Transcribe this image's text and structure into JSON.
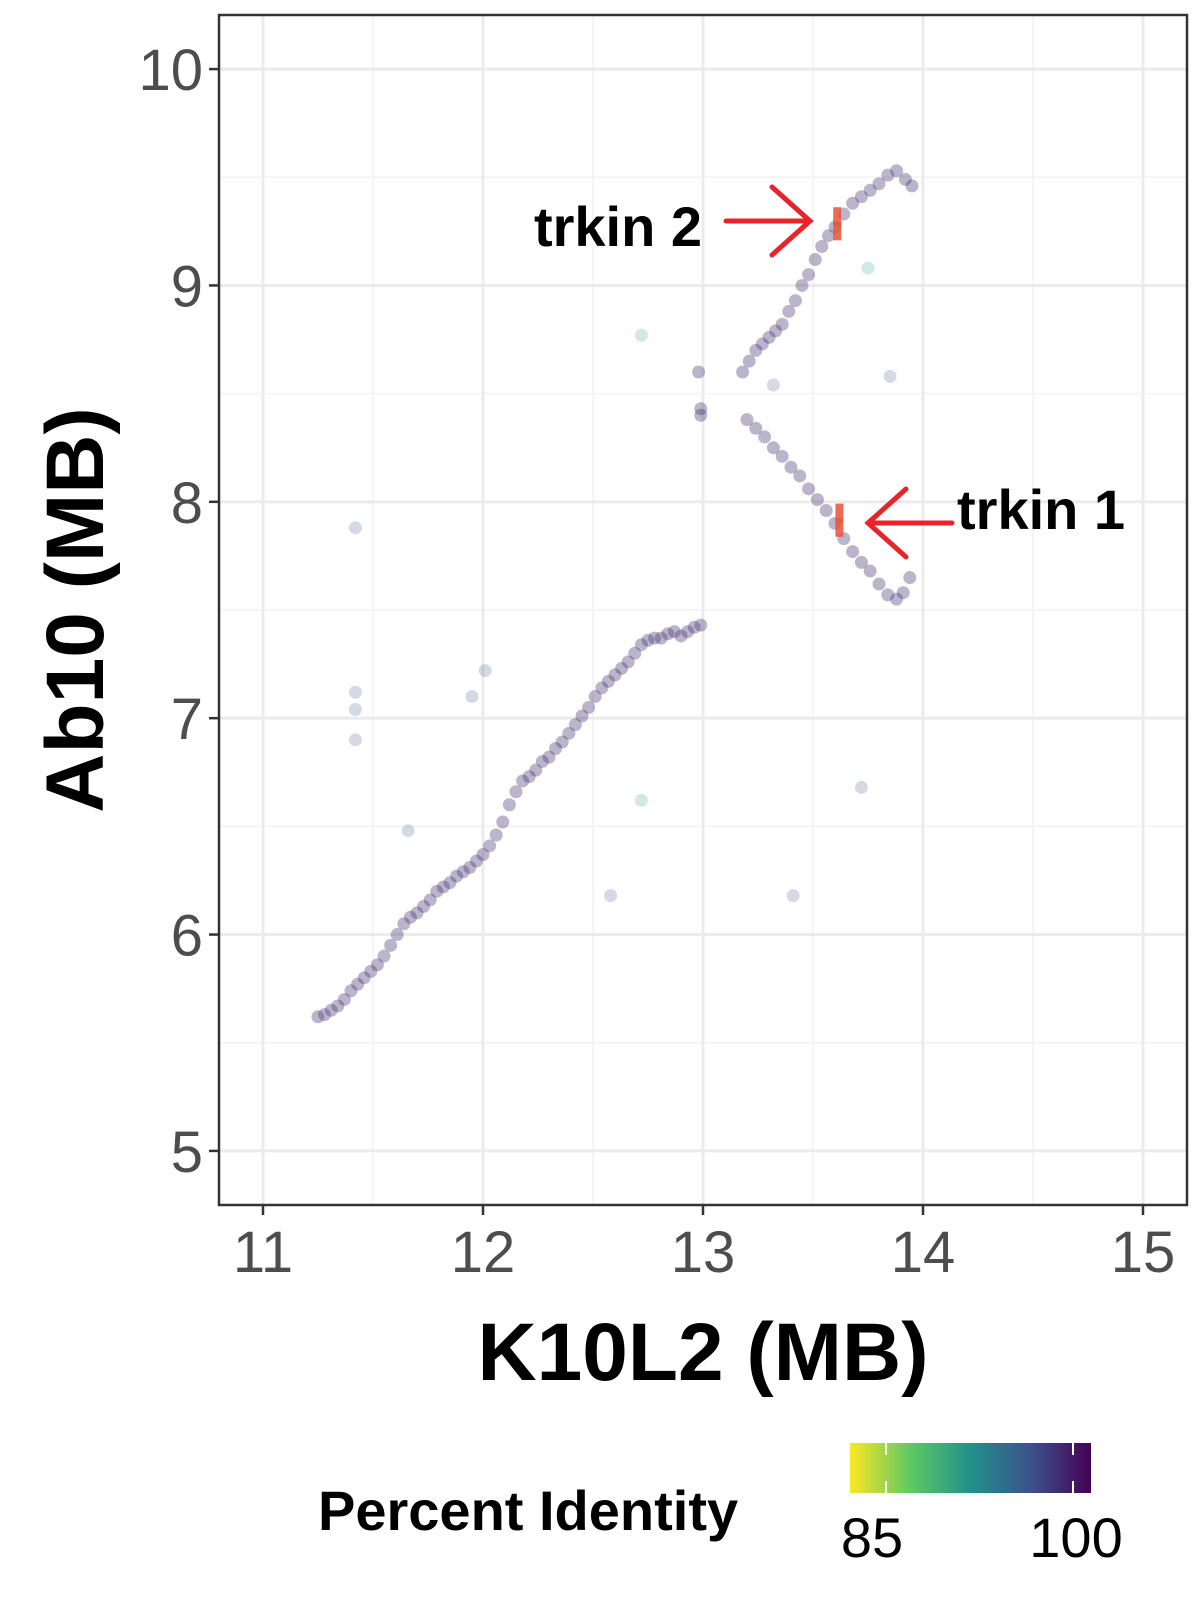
{
  "chart_data": {
    "type": "scatter",
    "title": "",
    "xlabel": "K10L2 (MB)",
    "ylabel": "Ab10 (MB)",
    "xlim": [
      10.8,
      15.2
    ],
    "ylim": [
      4.75,
      10.25
    ],
    "xticks": [
      11,
      12,
      13,
      14,
      15
    ],
    "yticks": [
      5,
      6,
      7,
      8,
      9,
      10
    ],
    "grid": true,
    "legend": {
      "title": "Percent Identity",
      "placement": "bottom",
      "min": 85,
      "max": 100,
      "tick_labels": [
        "85",
        "100"
      ]
    },
    "annotations": [
      {
        "label": "trkin 2",
        "x": 13.6,
        "y": 9.28,
        "side": "left"
      },
      {
        "label": "trkin 1",
        "x": 13.62,
        "y": 7.9,
        "side": "right"
      }
    ],
    "colors": {
      "line_points": "#3b2a6b",
      "high_identity": "#440154",
      "mid_identity": "#2a9d8f",
      "highlight": "#e8533a",
      "arrow": "#e8232a"
    },
    "series": [
      {
        "points": [
          [
            11.25,
            5.62
          ],
          [
            11.28,
            5.63
          ],
          [
            11.31,
            5.65
          ],
          [
            11.34,
            5.67
          ],
          [
            11.37,
            5.7
          ],
          [
            11.4,
            5.74
          ],
          [
            11.43,
            5.77
          ],
          [
            11.46,
            5.8
          ],
          [
            11.49,
            5.83
          ],
          [
            11.52,
            5.86
          ],
          [
            11.55,
            5.9
          ],
          [
            11.58,
            5.95
          ],
          [
            11.61,
            6.0
          ],
          [
            11.64,
            6.05
          ],
          [
            11.67,
            6.08
          ],
          [
            11.7,
            6.1
          ],
          [
            11.73,
            6.13
          ],
          [
            11.76,
            6.16
          ],
          [
            11.79,
            6.2
          ],
          [
            11.82,
            6.22
          ],
          [
            11.85,
            6.24
          ],
          [
            11.88,
            6.27
          ],
          [
            11.91,
            6.29
          ],
          [
            11.94,
            6.31
          ],
          [
            11.97,
            6.34
          ],
          [
            12.0,
            6.37
          ],
          [
            12.03,
            6.41
          ],
          [
            12.06,
            6.46
          ],
          [
            12.09,
            6.52
          ],
          [
            12.12,
            6.6
          ],
          [
            12.15,
            6.66
          ],
          [
            12.18,
            6.71
          ],
          [
            12.21,
            6.73
          ],
          [
            12.24,
            6.76
          ],
          [
            12.27,
            6.8
          ],
          [
            12.3,
            6.82
          ],
          [
            12.33,
            6.86
          ],
          [
            12.36,
            6.89
          ],
          [
            12.39,
            6.93
          ],
          [
            12.42,
            6.97
          ],
          [
            12.45,
            7.01
          ],
          [
            12.48,
            7.05
          ],
          [
            12.51,
            7.1
          ],
          [
            12.54,
            7.14
          ],
          [
            12.57,
            7.17
          ],
          [
            12.6,
            7.2
          ],
          [
            12.63,
            7.23
          ],
          [
            12.66,
            7.26
          ],
          [
            12.69,
            7.3
          ],
          [
            12.72,
            7.34
          ],
          [
            12.75,
            7.36
          ],
          [
            12.78,
            7.37
          ],
          [
            12.81,
            7.37
          ],
          [
            12.84,
            7.39
          ],
          [
            12.87,
            7.4
          ],
          [
            12.9,
            7.38
          ],
          [
            12.93,
            7.4
          ],
          [
            12.96,
            7.42
          ],
          [
            12.99,
            7.43
          ],
          [
            12.98,
            8.6
          ],
          [
            12.99,
            8.43
          ],
          [
            12.99,
            8.4
          ],
          [
            13.2,
            8.38
          ],
          [
            13.24,
            8.34
          ],
          [
            13.28,
            8.3
          ],
          [
            13.32,
            8.25
          ],
          [
            13.36,
            8.21
          ],
          [
            13.4,
            8.16
          ],
          [
            13.44,
            8.12
          ],
          [
            13.48,
            8.06
          ],
          [
            13.52,
            8.01
          ],
          [
            13.56,
            7.96
          ],
          [
            13.6,
            7.9
          ],
          [
            13.64,
            7.83
          ],
          [
            13.68,
            7.77
          ],
          [
            13.72,
            7.72
          ],
          [
            13.76,
            7.68
          ],
          [
            13.8,
            7.62
          ],
          [
            13.84,
            7.57
          ],
          [
            13.88,
            7.55
          ],
          [
            13.91,
            7.58
          ],
          [
            13.94,
            7.65
          ],
          [
            13.18,
            8.6
          ],
          [
            13.21,
            8.65
          ],
          [
            13.24,
            8.7
          ],
          [
            13.27,
            8.73
          ],
          [
            13.3,
            8.76
          ],
          [
            13.33,
            8.79
          ],
          [
            13.36,
            8.82
          ],
          [
            13.39,
            8.88
          ],
          [
            13.42,
            8.93
          ],
          [
            13.45,
            9.0
          ],
          [
            13.48,
            9.05
          ],
          [
            13.51,
            9.12
          ],
          [
            13.54,
            9.18
          ],
          [
            13.57,
            9.23
          ],
          [
            13.6,
            9.27
          ],
          [
            13.64,
            9.33
          ],
          [
            13.68,
            9.38
          ],
          [
            13.72,
            9.41
          ],
          [
            13.76,
            9.44
          ],
          [
            13.8,
            9.47
          ],
          [
            13.84,
            9.51
          ],
          [
            13.88,
            9.53
          ],
          [
            13.92,
            9.49
          ],
          [
            13.95,
            9.46
          ]
        ]
      },
      {
        "points": [
          [
            11.42,
            7.88
          ],
          [
            11.42,
            7.12
          ],
          [
            11.42,
            7.04
          ],
          [
            11.42,
            6.9
          ],
          [
            11.95,
            7.1
          ],
          [
            12.01,
            7.22
          ],
          [
            11.66,
            6.48
          ],
          [
            12.58,
            6.18
          ],
          [
            13.41,
            6.18
          ],
          [
            13.72,
            6.68
          ],
          [
            13.85,
            8.58
          ],
          [
            13.32,
            8.54
          ]
        ]
      },
      {
        "points": [
          [
            12.72,
            8.77
          ],
          [
            13.75,
            9.08
          ],
          [
            12.72,
            6.62
          ]
        ]
      },
      {
        "points": [
          [
            13.61,
            9.25
          ],
          [
            13.61,
            9.32
          ],
          [
            13.62,
            7.88
          ],
          [
            13.62,
            7.95
          ]
        ]
      }
    ]
  }
}
